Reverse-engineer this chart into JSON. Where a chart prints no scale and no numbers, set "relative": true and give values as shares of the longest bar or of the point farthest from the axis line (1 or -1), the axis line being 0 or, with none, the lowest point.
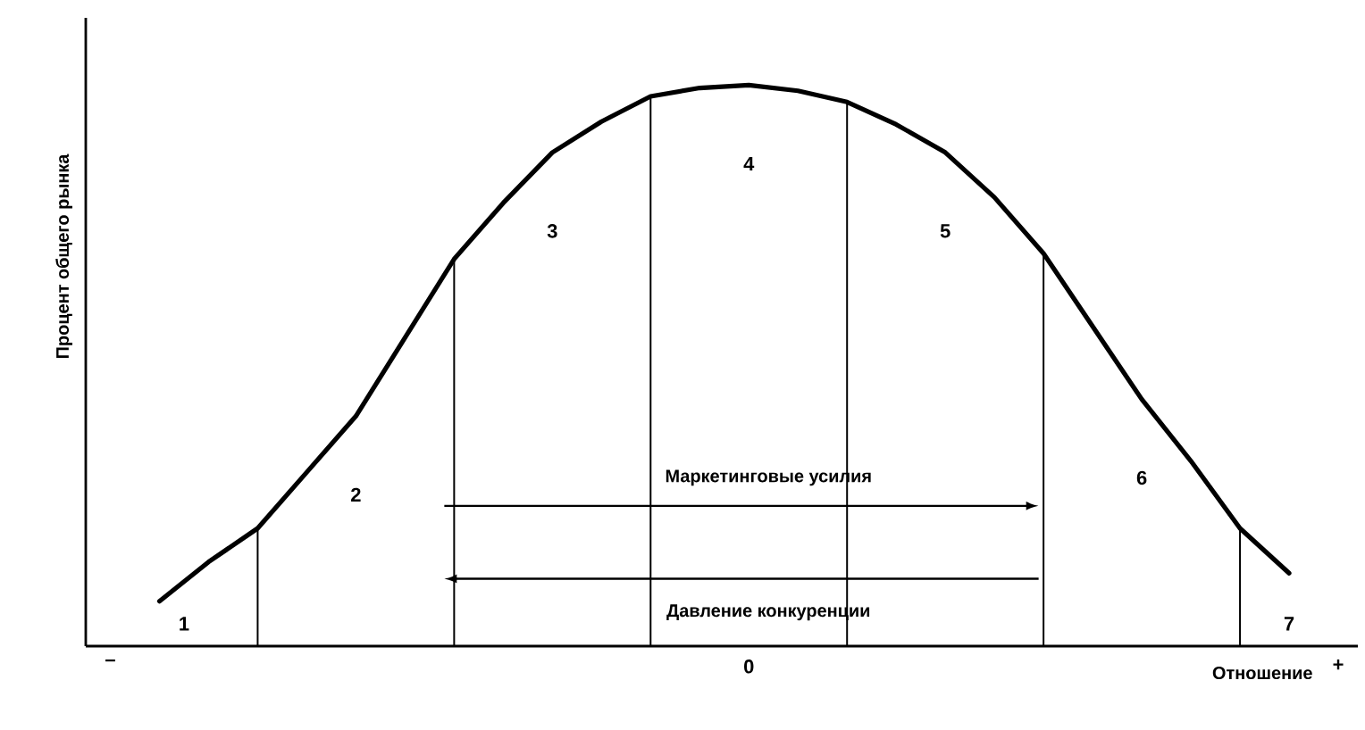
{
  "chart_data": {
    "type": "line",
    "relative": true,
    "xlabel": "Отношение",
    "ylabel": "Процент общего рынка",
    "categories": [
      "–",
      null,
      null,
      null,
      null,
      null,
      null,
      null,
      null,
      null,
      null,
      null,
      null,
      "0",
      null,
      null,
      null,
      null,
      null,
      null,
      null,
      null,
      null,
      null,
      null,
      "+"
    ],
    "series": [
      {
        "color": "#000000",
        "values": [
          null,
          0.08,
          0.15,
          0.21,
          0.31,
          0.41,
          0.55,
          0.69,
          0.79,
          0.88,
          0.935,
          0.98,
          0.995,
          1.0,
          0.99,
          0.97,
          0.93,
          0.88,
          0.8,
          0.7,
          0.57,
          0.44,
          0.33,
          0.21,
          0.13,
          null
        ]
      },
      {
        "type": "bar",
        "color": "#000000",
        "values": [
          null,
          null,
          null,
          0.21,
          null,
          null,
          null,
          0.69,
          null,
          null,
          null,
          0.98,
          null,
          null,
          null,
          0.97,
          null,
          null,
          null,
          0.7,
          null,
          null,
          null,
          0.21,
          null,
          null
        ]
      }
    ],
    "annotations": [
      "1",
      "2",
      "3",
      "4",
      "5",
      "6",
      "7",
      "Маркетинговые усилия",
      "Давление конкуренции"
    ],
    "marker": "none",
    "line_style": "solid",
    "grid": false
  }
}
